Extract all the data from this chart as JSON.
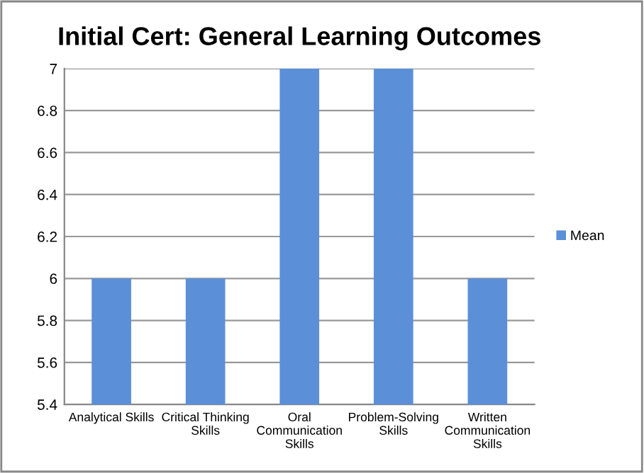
{
  "chart_data": {
    "type": "bar",
    "title": "Initial Cert: General Learning Outcomes",
    "categories": [
      "Analytical Skills",
      "Critical Thinking\nSkills",
      "Oral\nCommunication\nSkills",
      "Problem-Solving\nSkills",
      "Written\nCommunication\nSkills"
    ],
    "series": [
      {
        "name": "Mean",
        "color": "#5b8fd8",
        "values": [
          6,
          6,
          7,
          7,
          6
        ]
      }
    ],
    "ylim": [
      5.4,
      7
    ],
    "yticks": [
      5.4,
      5.6,
      5.8,
      6,
      6.2,
      6.4,
      6.6,
      6.8,
      7
    ],
    "grid": "y",
    "legend": "right"
  }
}
